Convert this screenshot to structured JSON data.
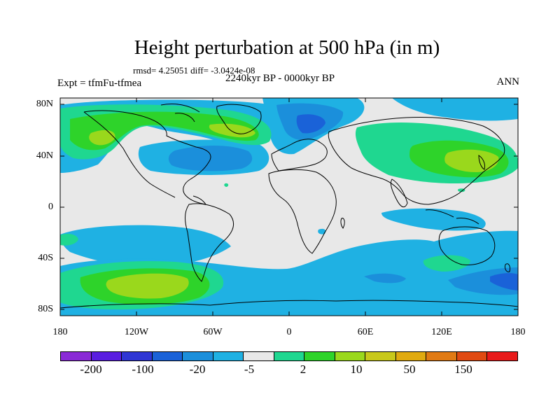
{
  "title": "Height perturbation at 500 hPa (in m)",
  "stats_line": "rmsd= 4.25051 diff= -3.0424e-08",
  "experiment_label": "Expt = tfmFu-tfmea",
  "period_label": "2240kyr BP - 0000kyr BP",
  "season_label": "ANN",
  "y_ticks": [
    "80N",
    "40N",
    "0",
    "40S",
    "80S"
  ],
  "x_ticks": [
    "180",
    "120W",
    "60W",
    "0",
    "60E",
    "120E",
    "180"
  ],
  "colorbar": {
    "colors": [
      "#8a2ad6",
      "#5a1ee0",
      "#2f36d4",
      "#1a62d8",
      "#1b8fdb",
      "#1fb1e3",
      "#e8e8e8",
      "#1fd790",
      "#2ed32a",
      "#9ad81c",
      "#c8c81a",
      "#e0aa10",
      "#e07a14",
      "#e04a12",
      "#e81a1a"
    ],
    "labels": [
      "-200",
      "-100",
      "-20",
      "-5",
      "2",
      "10",
      "50",
      "150"
    ]
  },
  "field_palette": {
    "background": "#e8e8e8",
    "light_blue": "#1fb1e3",
    "mid_blue": "#1b8fdb",
    "dark_blue": "#1a62d8",
    "teal_green": "#1fd790",
    "green": "#2ed32a",
    "yellow_green": "#9ad81c",
    "coast": "#000000"
  }
}
